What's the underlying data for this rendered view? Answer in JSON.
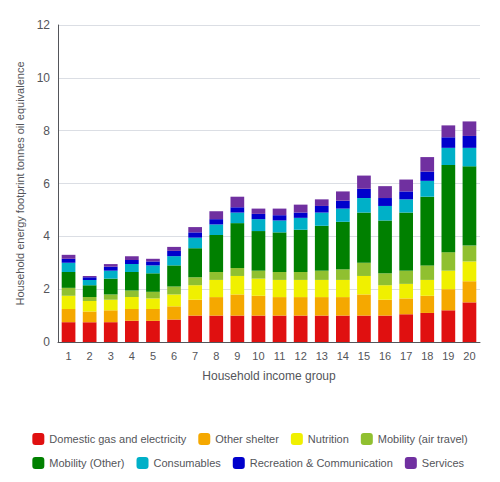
{
  "chart_data": {
    "type": "bar",
    "stacked": true,
    "xlabel": "Household income group",
    "ylabel": "Household energy footprint tonnes oil equivalence",
    "categories": [
      1,
      2,
      3,
      4,
      5,
      6,
      7,
      8,
      9,
      10,
      11,
      12,
      13,
      14,
      15,
      16,
      17,
      18,
      19,
      20
    ],
    "series": [
      {
        "name": "Domestic gas and electricity",
        "color": "#e01010",
        "values": [
          0.75,
          0.75,
          0.75,
          0.8,
          0.8,
          0.85,
          1.0,
          1.0,
          1.0,
          1.0,
          1.0,
          1.0,
          1.0,
          1.0,
          1.0,
          1.0,
          1.05,
          1.1,
          1.2,
          1.5
        ]
      },
      {
        "name": "Other shelter",
        "color": "#f5a800",
        "values": [
          0.5,
          0.4,
          0.45,
          0.45,
          0.45,
          0.5,
          0.6,
          0.7,
          0.8,
          0.75,
          0.7,
          0.7,
          0.7,
          0.7,
          0.8,
          0.6,
          0.6,
          0.65,
          0.8,
          0.8
        ]
      },
      {
        "name": "Nutrition",
        "color": "#f0f000",
        "values": [
          0.5,
          0.4,
          0.4,
          0.45,
          0.4,
          0.45,
          0.55,
          0.65,
          0.7,
          0.65,
          0.65,
          0.65,
          0.65,
          0.65,
          0.7,
          0.55,
          0.55,
          0.6,
          0.7,
          0.75
        ]
      },
      {
        "name": "Mobility (air travel)",
        "color": "#90c030",
        "values": [
          0.3,
          0.15,
          0.2,
          0.25,
          0.25,
          0.3,
          0.3,
          0.3,
          0.3,
          0.3,
          0.3,
          0.3,
          0.35,
          0.4,
          0.5,
          0.45,
          0.5,
          0.55,
          0.7,
          0.6
        ]
      },
      {
        "name": "Mobility (Other)",
        "color": "#008000",
        "values": [
          0.6,
          0.45,
          0.6,
          0.7,
          0.7,
          0.8,
          1.1,
          1.4,
          1.7,
          1.5,
          1.5,
          1.6,
          1.7,
          1.8,
          1.9,
          2.0,
          2.2,
          2.6,
          3.3,
          3.0
        ]
      },
      {
        "name": "Consumables",
        "color": "#00b0c8",
        "values": [
          0.35,
          0.2,
          0.3,
          0.3,
          0.3,
          0.35,
          0.4,
          0.4,
          0.4,
          0.45,
          0.45,
          0.45,
          0.5,
          0.5,
          0.55,
          0.55,
          0.5,
          0.6,
          0.65,
          0.7
        ]
      },
      {
        "name": "Recreation & Communication",
        "color": "#0000cc",
        "values": [
          0.15,
          0.1,
          0.15,
          0.15,
          0.15,
          0.2,
          0.2,
          0.2,
          0.2,
          0.2,
          0.2,
          0.2,
          0.25,
          0.3,
          0.35,
          0.3,
          0.3,
          0.35,
          0.4,
          0.45
        ]
      },
      {
        "name": "Services",
        "color": "#7030a0",
        "values": [
          0.15,
          0.05,
          0.1,
          0.15,
          0.1,
          0.15,
          0.2,
          0.3,
          0.4,
          0.2,
          0.25,
          0.3,
          0.25,
          0.35,
          0.5,
          0.45,
          0.45,
          0.55,
          0.45,
          0.55
        ]
      }
    ],
    "ylim": [
      0,
      12
    ],
    "yticks": [
      0,
      2,
      4,
      6,
      8,
      10,
      12
    ],
    "grid": true,
    "legend": "bottom"
  }
}
